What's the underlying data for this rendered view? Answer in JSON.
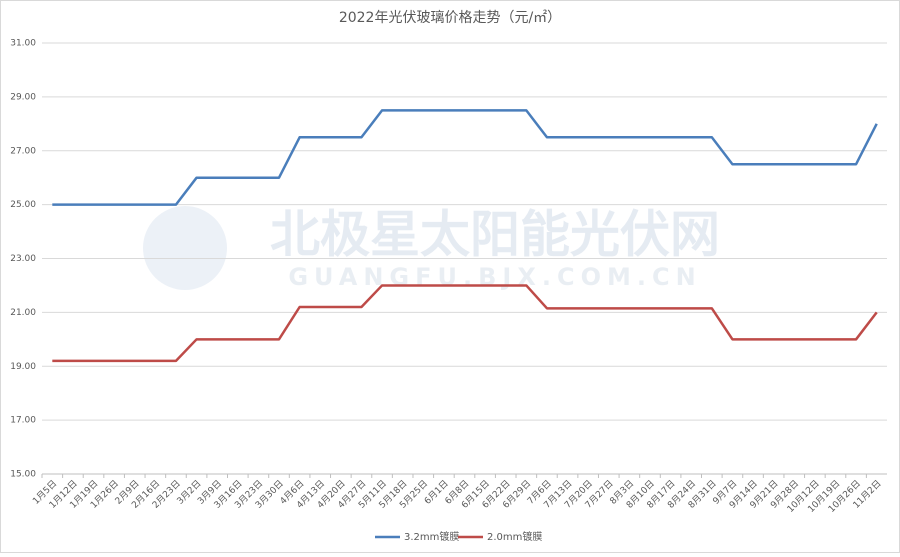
{
  "chart_data": {
    "type": "line",
    "title": "2022年光伏玻璃价格走势（元/㎡）",
    "watermark": {
      "name": "北极星太阳能光伏网",
      "url": "GUANGFU.BJX.COM.CN"
    },
    "categories": [
      "1月5日",
      "1月12日",
      "1月19日",
      "1月26日",
      "2月9日",
      "2月16日",
      "2月23日",
      "3月2日",
      "3月9日",
      "3月16日",
      "3月23日",
      "3月30日",
      "4月6日",
      "4月13日",
      "4月20日",
      "4月27日",
      "5月11日",
      "5月18日",
      "5月25日",
      "6月1日",
      "6月8日",
      "6月15日",
      "6月22日",
      "6月29日",
      "7月6日",
      "7月13日",
      "7月20日",
      "7月27日",
      "8月3日",
      "8月10日",
      "8月17日",
      "8月24日",
      "8月31日",
      "9月7日",
      "9月14日",
      "9月21日",
      "9月28日",
      "10月12日",
      "10月19日",
      "10月26日",
      "11月2日"
    ],
    "series": [
      {
        "name": "3.2mm镀膜",
        "color": "#4a7ebb",
        "values": [
          25,
          25,
          25,
          25,
          25,
          25,
          25,
          26,
          26,
          26,
          26,
          26,
          27.5,
          27.5,
          27.5,
          27.5,
          28.5,
          28.5,
          28.5,
          28.5,
          28.5,
          28.5,
          28.5,
          28.5,
          27.5,
          27.5,
          27.5,
          27.5,
          27.5,
          27.5,
          27.5,
          27.5,
          27.5,
          26.5,
          26.5,
          26.5,
          26.5,
          26.5,
          26.5,
          26.5,
          28
        ]
      },
      {
        "name": "2.0mm镀膜",
        "color": "#be4b48",
        "values": [
          19.2,
          19.2,
          19.2,
          19.2,
          19.2,
          19.2,
          19.2,
          20,
          20,
          20,
          20,
          20,
          21.2,
          21.2,
          21.2,
          21.2,
          22,
          22,
          22,
          22,
          22,
          22,
          22,
          22,
          21.15,
          21.15,
          21.15,
          21.15,
          21.15,
          21.15,
          21.15,
          21.15,
          21.15,
          20,
          20,
          20,
          20,
          20,
          20,
          20,
          21
        ]
      }
    ],
    "ylim": [
      15,
      31
    ],
    "yticks": [
      {
        "value": 15,
        "label": "15.00"
      },
      {
        "value": 17,
        "label": "17.00"
      },
      {
        "value": 19,
        "label": "19.00"
      },
      {
        "value": 21,
        "label": "21.00"
      },
      {
        "value": 23,
        "label": "23.00"
      },
      {
        "value": 25,
        "label": "25.00"
      },
      {
        "value": 27,
        "label": "27.00"
      },
      {
        "value": 29,
        "label": "29.00"
      },
      {
        "value": 31,
        "label": "31.00"
      }
    ],
    "grid": true,
    "legend": "bottom"
  }
}
